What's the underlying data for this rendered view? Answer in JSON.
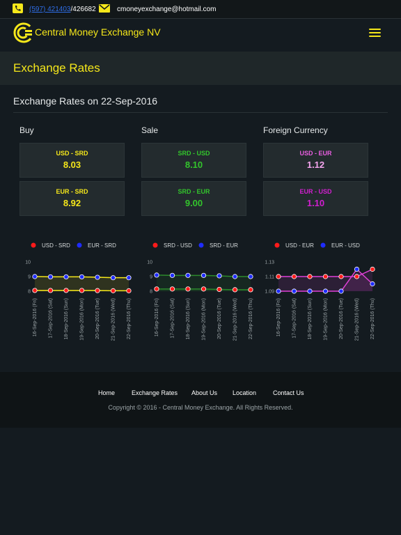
{
  "topbar": {
    "phone_link": "(597) 421403",
    "phone_suffix": "/426682",
    "email": "cmoneyexchange@hotmail.com"
  },
  "brand": "Central Money Exchange NV",
  "page_title": "Exchange Rates",
  "section_title": "Exchange Rates on 22-Sep-2016",
  "columns": [
    {
      "title": "Buy",
      "cards": [
        {
          "pair": "USD - SRD",
          "rate": "8.03",
          "color": "#f5e71a"
        },
        {
          "pair": "EUR - SRD",
          "rate": "8.92",
          "color": "#f5e71a"
        }
      ]
    },
    {
      "title": "Sale",
      "cards": [
        {
          "pair": "SRD - USD",
          "rate": "8.10",
          "color": "#33c42c"
        },
        {
          "pair": "SRD - EUR",
          "rate": "9.00",
          "color": "#33c42c"
        }
      ]
    },
    {
      "title": "Foreign Currency",
      "cards": [
        {
          "pair": "USD - EUR",
          "pair_color": "#e85ee0",
          "rate": "1.12",
          "color": "#f6a6ef"
        },
        {
          "pair": "EUR - USD",
          "pair_color": "#d21fd0",
          "rate": "1.10",
          "color": "#d21fd0"
        }
      ]
    }
  ],
  "chart_data": [
    {
      "type": "line",
      "x": [
        "16-Sep-2016 (Fri)",
        "17-Sep-2016 (Sat)",
        "18-Sep-2016 (Sun)",
        "19-Sep-2016 (Mon)",
        "20-Sep-2016 (Tue)",
        "21-Sep-2016 (Wed)",
        "22-Sep-2016 (Thu)"
      ],
      "y_ticks": [
        "10",
        "9",
        "8"
      ],
      "ylim": [
        8,
        10
      ],
      "series": [
        {
          "name": "USD - SRD",
          "values": [
            8.05,
            8.05,
            8.05,
            8.05,
            8.04,
            8.03,
            8.03
          ],
          "point_color": "#ff1a1a",
          "line_color": "#f5e71a"
        },
        {
          "name": "EUR - SRD",
          "values": [
            9.0,
            8.98,
            8.98,
            8.98,
            8.95,
            8.92,
            8.92
          ],
          "point_color": "#1f2cff",
          "line_color": "#f5e71a"
        }
      ]
    },
    {
      "type": "line",
      "x": [
        "16-Sep-2016 (Fri)",
        "17-Sep-2016 (Sat)",
        "18-Sep-2016 (Sun)",
        "19-Sep-2016 (Mon)",
        "20-Sep-2016 (Tue)",
        "21-Sep-2016 (Wed)",
        "22-Sep-2016 (Thu)"
      ],
      "y_ticks": [
        "10",
        "9",
        "8"
      ],
      "ylim": [
        8,
        10
      ],
      "series": [
        {
          "name": "SRD - USD",
          "values": [
            8.15,
            8.15,
            8.15,
            8.15,
            8.12,
            8.1,
            8.1
          ],
          "point_color": "#ff1a1a",
          "line_color": "#2c8a2c"
        },
        {
          "name": "SRD - EUR",
          "values": [
            9.1,
            9.08,
            9.08,
            9.08,
            9.05,
            9.0,
            9.0
          ],
          "point_color": "#1f2cff",
          "line_color": "#2c8a2c"
        }
      ]
    },
    {
      "type": "line",
      "x": [
        "16-Sep-2016 (Fri)",
        "17-Sep-2016 (Sat)",
        "18-Sep-2016 (Sun)",
        "19-Sep-2016 (Mon)",
        "20-Sep-2016 (Tue)",
        "21-Sep-2016 (Wed)",
        "22-Sep-2016 (Thu)"
      ],
      "y_ticks": [
        "1.13",
        "1.11",
        "1.09"
      ],
      "ylim": [
        1.09,
        1.13
      ],
      "series": [
        {
          "name": "USD - EUR",
          "values": [
            1.11,
            1.11,
            1.11,
            1.11,
            1.11,
            1.11,
            1.12
          ],
          "point_color": "#ff1a1a",
          "line_color": "#e040d8"
        },
        {
          "name": "EUR - USD",
          "values": [
            1.09,
            1.09,
            1.09,
            1.09,
            1.09,
            1.12,
            1.1
          ],
          "point_color": "#1f2cff",
          "line_color": "#e040d8"
        }
      ]
    }
  ],
  "footer": {
    "links": [
      "Home",
      "Exchange Rates",
      "About Us",
      "Location",
      "Contact Us"
    ],
    "copyright": "Copyright © 2016 - Central Money Exchange. All Rights Reserved."
  }
}
